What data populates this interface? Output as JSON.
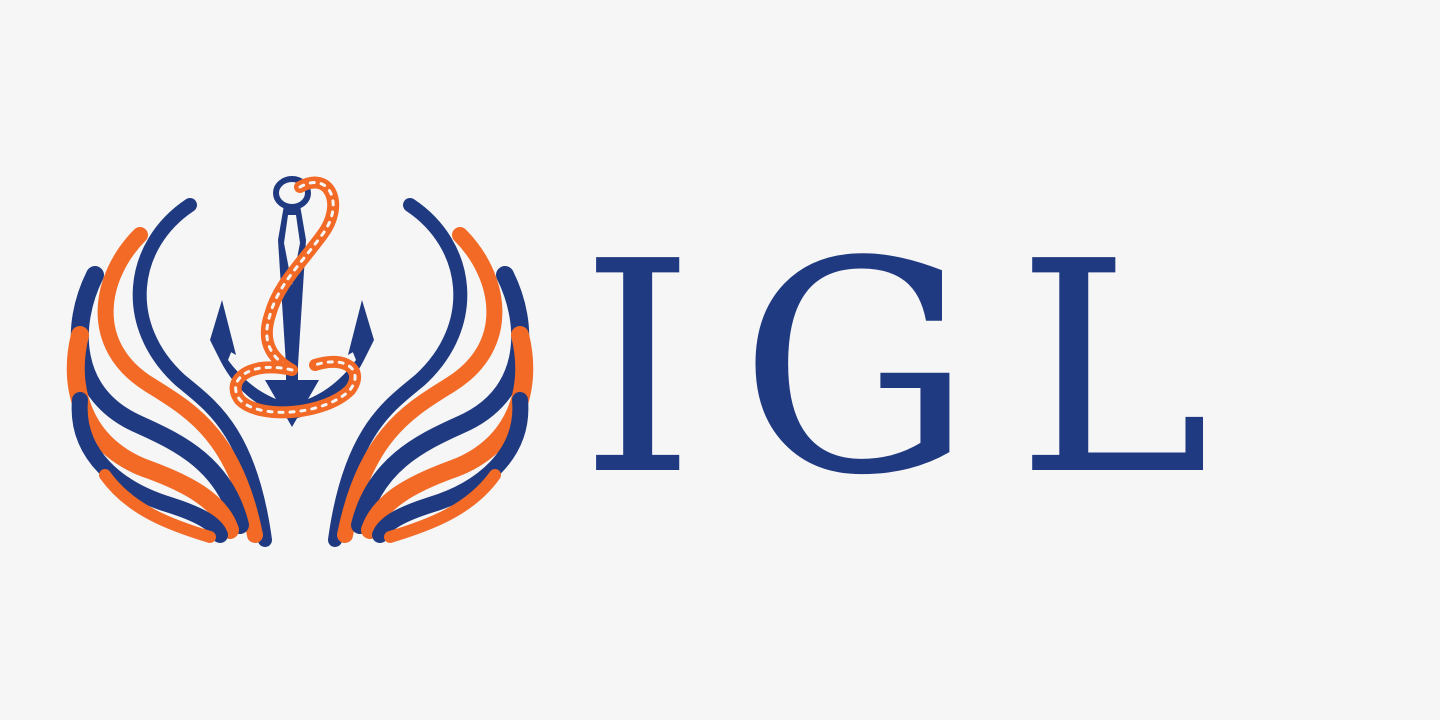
{
  "brand": {
    "name": "IGL",
    "colors": {
      "background": "#f6f6f7",
      "navy": "#1f3a80",
      "orange": "#f26a26"
    }
  },
  "emblem": {
    "icon": "anchor-with-rope-and-wings-icon"
  }
}
